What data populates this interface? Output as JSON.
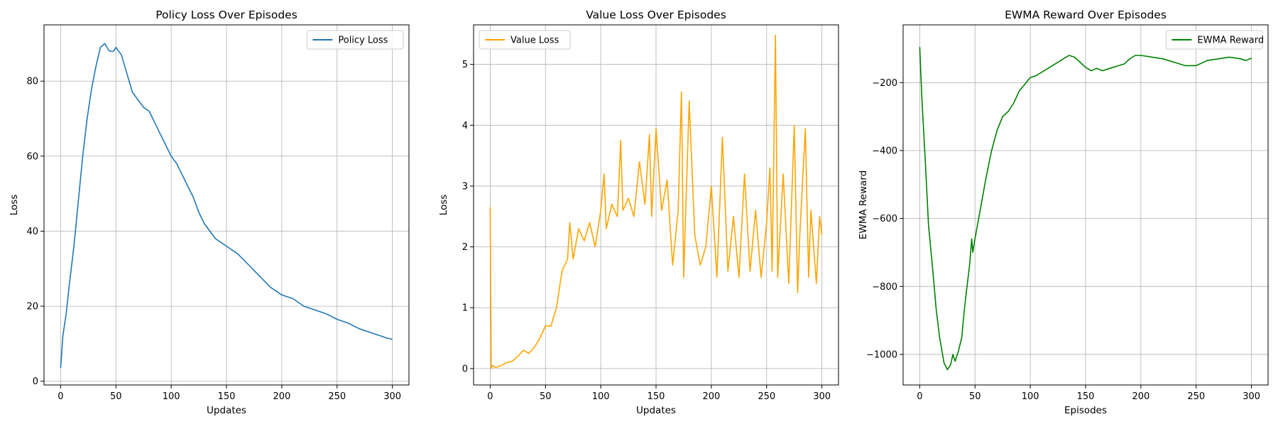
{
  "chart_data": [
    {
      "type": "line",
      "title": "Policy Loss Over Episodes",
      "xlabel": "Updates",
      "ylabel": "Loss",
      "xlim": [
        -15,
        315
      ],
      "ylim": [
        -1,
        95
      ],
      "xticks": [
        0,
        50,
        100,
        150,
        200,
        250,
        300
      ],
      "yticks": [
        0,
        20,
        40,
        60,
        80
      ],
      "grid": true,
      "legend": "top-right",
      "series": [
        {
          "name": "Policy Loss",
          "color": "#1f77b4",
          "x": [
            0,
            2,
            5,
            8,
            12,
            16,
            20,
            24,
            28,
            32,
            36,
            40,
            44,
            48,
            50,
            55,
            60,
            65,
            70,
            75,
            80,
            85,
            90,
            95,
            100,
            105,
            110,
            115,
            120,
            125,
            130,
            135,
            140,
            145,
            150,
            160,
            170,
            180,
            190,
            200,
            210,
            220,
            230,
            240,
            250,
            260,
            270,
            280,
            290,
            295,
            300
          ],
          "y": [
            3.5,
            12,
            18,
            26,
            36,
            48,
            60,
            70,
            78,
            84,
            89,
            90,
            88,
            88,
            89,
            87,
            82,
            77,
            75,
            73,
            72,
            69,
            66,
            63,
            60,
            58,
            55,
            52,
            49,
            45,
            42,
            40,
            38,
            37,
            36,
            34,
            31,
            28,
            25,
            23,
            22,
            20,
            19,
            18,
            16.5,
            15.5,
            14,
            13,
            12,
            11.5,
            11.2
          ]
        }
      ]
    },
    {
      "type": "line",
      "title": "Value Loss Over Episodes",
      "xlabel": "Updates",
      "ylabel": "Loss",
      "xlim": [
        -15,
        315
      ],
      "ylim": [
        -0.27,
        5.65
      ],
      "xticks": [
        0,
        50,
        100,
        150,
        200,
        250,
        300
      ],
      "yticks": [
        0,
        1,
        2,
        3,
        4,
        5
      ],
      "grid": true,
      "legend": "top-left",
      "series": [
        {
          "name": "Value Loss",
          "color": "#ffa500",
          "x": [
            0,
            1,
            2,
            5,
            10,
            15,
            20,
            25,
            30,
            35,
            40,
            45,
            50,
            55,
            60,
            65,
            70,
            72,
            75,
            80,
            85,
            90,
            95,
            100,
            103,
            105,
            110,
            115,
            118,
            120,
            125,
            130,
            135,
            140,
            144,
            146,
            150,
            155,
            160,
            165,
            170,
            173,
            175,
            180,
            185,
            190,
            195,
            200,
            205,
            210,
            215,
            220,
            225,
            230,
            235,
            240,
            245,
            250,
            253,
            255,
            258,
            260,
            265,
            270,
            275,
            278,
            280,
            285,
            288,
            290,
            295,
            298,
            300
          ],
          "y": [
            2.65,
            0.0,
            0.05,
            0.02,
            0.05,
            0.1,
            0.12,
            0.2,
            0.3,
            0.25,
            0.35,
            0.5,
            0.7,
            0.7,
            1.0,
            1.6,
            1.8,
            2.4,
            1.8,
            2.3,
            2.1,
            2.4,
            2.0,
            2.6,
            3.2,
            2.3,
            2.7,
            2.5,
            3.75,
            2.6,
            2.8,
            2.5,
            3.4,
            2.7,
            3.85,
            2.5,
            3.95,
            2.6,
            3.1,
            1.7,
            2.6,
            4.55,
            1.5,
            4.4,
            2.2,
            1.7,
            2.0,
            3.0,
            1.5,
            3.8,
            1.6,
            2.5,
            1.5,
            3.2,
            1.6,
            2.6,
            1.5,
            2.4,
            3.3,
            1.6,
            5.48,
            1.5,
            3.2,
            1.4,
            4.0,
            1.25,
            2.2,
            3.95,
            1.5,
            2.6,
            1.4,
            2.5,
            2.2
          ]
        }
      ]
    },
    {
      "type": "line",
      "title": "EWMA Reward Over Episodes",
      "xlabel": "Episodes",
      "ylabel": "EWMA Reward",
      "xlim": [
        -15,
        315
      ],
      "ylim": [
        -1090,
        -30
      ],
      "xticks": [
        0,
        50,
        100,
        150,
        200,
        250,
        300
      ],
      "yticks": [
        -1000,
        -800,
        -600,
        -400,
        -200
      ],
      "grid": true,
      "legend": "top-right",
      "series": [
        {
          "name": "EWMA Reward",
          "color": "#008000",
          "x": [
            0,
            2,
            5,
            8,
            12,
            15,
            18,
            22,
            25,
            28,
            30,
            32,
            35,
            38,
            40,
            42,
            45,
            47,
            48,
            50,
            55,
            60,
            65,
            70,
            75,
            80,
            85,
            90,
            95,
            100,
            105,
            110,
            115,
            120,
            125,
            130,
            135,
            140,
            145,
            150,
            155,
            160,
            165,
            170,
            175,
            180,
            185,
            190,
            195,
            200,
            210,
            220,
            230,
            240,
            250,
            260,
            270,
            280,
            290,
            295,
            300
          ],
          "y": [
            -95,
            -250,
            -430,
            -620,
            -760,
            -870,
            -950,
            -1025,
            -1045,
            -1030,
            -1000,
            -1020,
            -990,
            -950,
            -880,
            -820,
            -740,
            -660,
            -700,
            -660,
            -570,
            -480,
            -400,
            -340,
            -300,
            -285,
            -260,
            -225,
            -205,
            -185,
            -180,
            -170,
            -160,
            -150,
            -140,
            -130,
            -120,
            -125,
            -140,
            -155,
            -165,
            -158,
            -165,
            -160,
            -155,
            -150,
            -145,
            -130,
            -120,
            -120,
            -125,
            -130,
            -140,
            -150,
            -150,
            -135,
            -130,
            -125,
            -130,
            -135,
            -128
          ]
        }
      ]
    }
  ]
}
